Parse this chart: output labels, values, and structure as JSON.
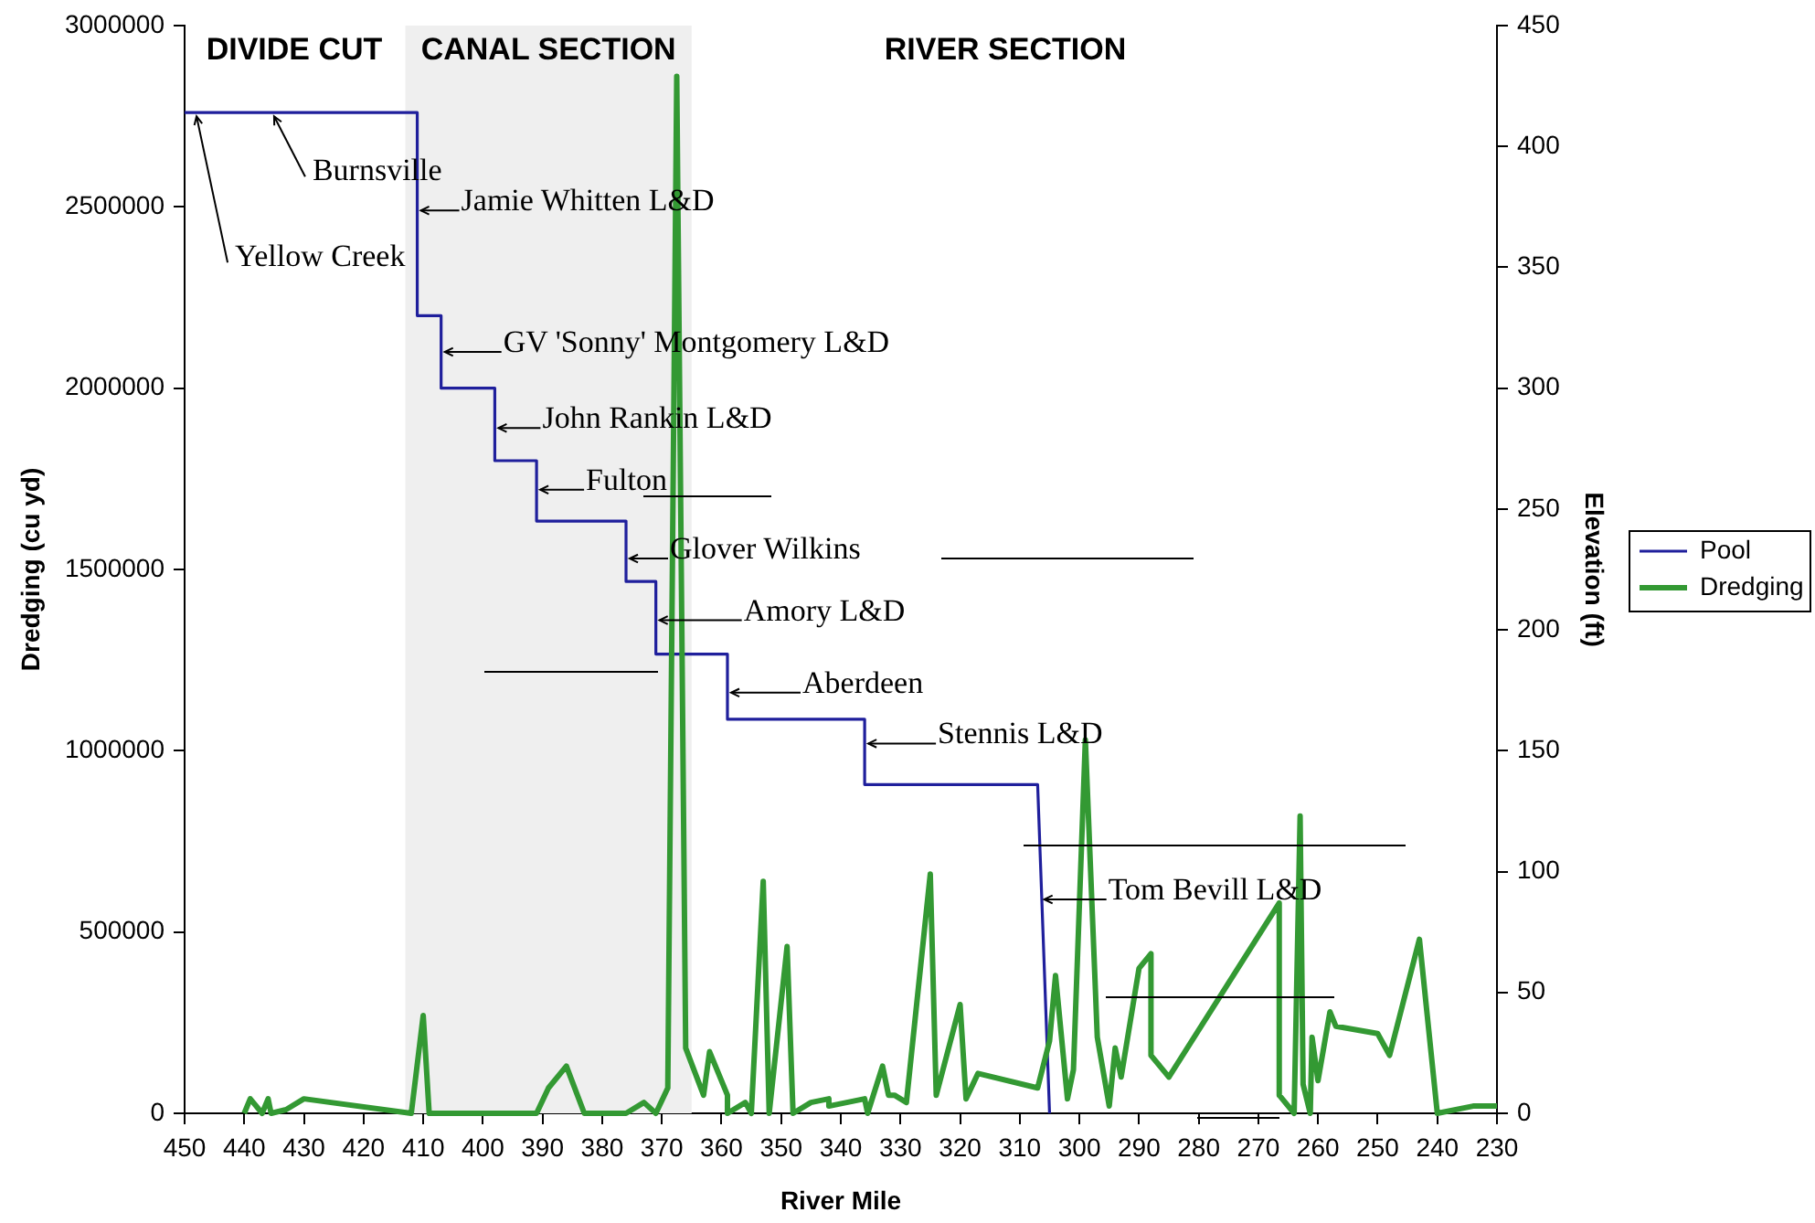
{
  "chart_data": {
    "type": "line",
    "xlabel": "River Mile",
    "ylabel": "Dredging (cu yd)",
    "y2label": "Elevation (ft)",
    "xlim": [
      450,
      230
    ],
    "xticks": [
      450,
      440,
      430,
      420,
      410,
      400,
      390,
      380,
      370,
      360,
      350,
      340,
      330,
      320,
      310,
      300,
      290,
      280,
      270,
      260,
      250,
      240,
      230
    ],
    "ylim": [
      0,
      3000000
    ],
    "yticks": [
      0,
      500000,
      1000000,
      1500000,
      2000000,
      2500000,
      3000000
    ],
    "y2lim": [
      0,
      450
    ],
    "y2ticks": [
      0,
      50,
      100,
      150,
      200,
      250,
      300,
      350,
      400,
      450
    ],
    "legend": "right",
    "bands": [
      {
        "axis": "x",
        "from": 413,
        "to": 365,
        "label": "CANAL SECTION",
        "color": "#efefef"
      }
    ],
    "annotations": [
      "DIVIDE CUT",
      "RIVER SECTION",
      {
        "text": "Yellow Creek",
        "x": 448,
        "y": 2760000
      },
      {
        "text": "Burnsville",
        "x": 435,
        "y": 2760000
      },
      {
        "text": "Jamie Whitten L&D",
        "x": 411,
        "y": 2490000
      },
      {
        "text": "GV 'Sonny' Montgomery L&D",
        "x": 407,
        "y": 2100000
      },
      {
        "text": "John Rankin L&D",
        "x": 398,
        "y": 1890000
      },
      {
        "text": "Fulton",
        "x": 391,
        "y": 1720000
      },
      {
        "text": "Glover Wilkins",
        "x": 376,
        "y": 1530000
      },
      {
        "text": "Amory L&D",
        "x": 371,
        "y": 1360000
      },
      {
        "text": "Aberdeen",
        "x": 359,
        "y": 1160000
      },
      {
        "text": "Stennis L&D",
        "x": 336,
        "y": 1020000
      },
      {
        "text": "Tom Bevill L&D",
        "x": 306.5,
        "y": 590000
      }
    ],
    "series": [
      {
        "name": "Pool",
        "color": "#1f1f9c",
        "axis": "y2",
        "x": [
          450,
          411,
          411,
          407,
          407,
          398,
          398,
          391,
          391,
          376,
          376,
          371,
          371,
          359,
          359,
          336,
          336,
          307,
          305
        ],
        "values": [
          414,
          414,
          330,
          330,
          300,
          300,
          270,
          270,
          245,
          245,
          220,
          220,
          190,
          190,
          163,
          163,
          136,
          136,
          0
        ]
      },
      {
        "name": "Dredging",
        "color": "#339933",
        "x": [
          440,
          439,
          437,
          436,
          435.5,
          433,
          430,
          412,
          410,
          409,
          391,
          389,
          386,
          383,
          376,
          373,
          371,
          369,
          367.5,
          366,
          363,
          362,
          359,
          359,
          356,
          355,
          353,
          352,
          349,
          348,
          345,
          342,
          342,
          336,
          335.5,
          333,
          332,
          331,
          329,
          325,
          324,
          320,
          319,
          317,
          307,
          305,
          304,
          302,
          301,
          299,
          297,
          295,
          294,
          293,
          290,
          288,
          288,
          285,
          266.5,
          266.5,
          264,
          263,
          262.5,
          261.3,
          261,
          260,
          258,
          257,
          250,
          248,
          243,
          240,
          234,
          230
        ],
        "values": [
          0,
          40000,
          0,
          40000,
          0,
          10000,
          40000,
          0,
          270000,
          0,
          0,
          70000,
          130000,
          0,
          0,
          30000,
          0,
          70000,
          2860000,
          180000,
          50000,
          170000,
          50000,
          0,
          30000,
          0,
          640000,
          0,
          460000,
          0,
          30000,
          40000,
          20000,
          40000,
          0,
          130000,
          50000,
          50000,
          30000,
          660000,
          50000,
          300000,
          40000,
          110000,
          70000,
          200000,
          380000,
          40000,
          120000,
          1030000,
          210000,
          20000,
          180000,
          100000,
          400000,
          440000,
          160000,
          100000,
          580000,
          50000,
          0,
          820000,
          80000,
          0,
          210000,
          90000,
          280000,
          240000,
          220000,
          160000,
          480000,
          0,
          20000,
          20000
        ]
      }
    ]
  }
}
